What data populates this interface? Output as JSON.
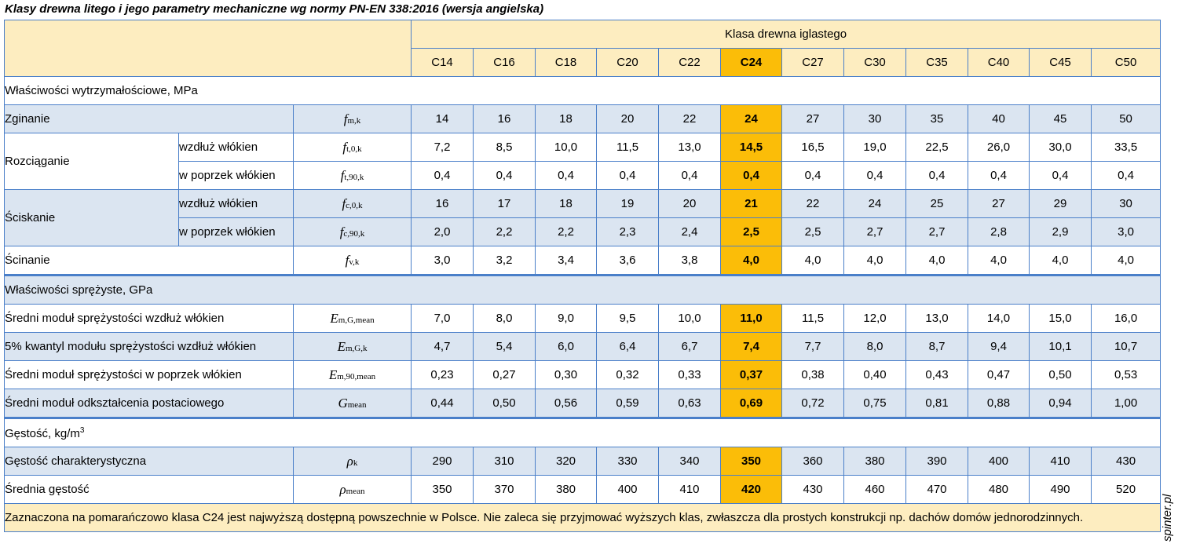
{
  "title": "Klasy drewna litego i jego parametry mechaniczne wg normy PN-EN 338:2016 (wersja angielska)",
  "group_header": "Klasa drewna iglastego",
  "classes": [
    "C14",
    "C16",
    "C18",
    "C20",
    "C22",
    "C24",
    "C27",
    "C30",
    "C35",
    "C40",
    "C45",
    "C50"
  ],
  "highlight_class": "C24",
  "sections": {
    "strength": "Właściwości wytrzymałościowe, MPa",
    "elastic": "Właściwości sprężyste, GPa",
    "density_prefix": "Gęstość, kg/m",
    "density_sup": "3"
  },
  "rows": {
    "zginanie": {
      "label": "Zginanie",
      "sym": "f",
      "sub": "m,k",
      "values": [
        "14",
        "16",
        "18",
        "20",
        "22",
        "24",
        "27",
        "30",
        "35",
        "40",
        "45",
        "50"
      ]
    },
    "rozciaganie": {
      "label": "Rozciąganie",
      "along": {
        "label": "wzdłuż włókien",
        "sym": "f",
        "sub": "t,0,k",
        "values": [
          "7,2",
          "8,5",
          "10,0",
          "11,5",
          "13,0",
          "14,5",
          "16,5",
          "19,0",
          "22,5",
          "26,0",
          "30,0",
          "33,5"
        ]
      },
      "across": {
        "label": "w poprzek włókien",
        "sym": "f",
        "sub": "t,90,k",
        "values": [
          "0,4",
          "0,4",
          "0,4",
          "0,4",
          "0,4",
          "0,4",
          "0,4",
          "0,4",
          "0,4",
          "0,4",
          "0,4",
          "0,4"
        ]
      }
    },
    "sciskanie": {
      "label": "Ściskanie",
      "along": {
        "label": "wzdłuż włókien",
        "sym": "f",
        "sub": "c,0,k",
        "values": [
          "16",
          "17",
          "18",
          "19",
          "20",
          "21",
          "22",
          "24",
          "25",
          "27",
          "29",
          "30"
        ]
      },
      "across": {
        "label": "w poprzek włókien",
        "sym": "f",
        "sub": "c,90,k",
        "values": [
          "2,0",
          "2,2",
          "2,2",
          "2,3",
          "2,4",
          "2,5",
          "2,5",
          "2,7",
          "2,7",
          "2,8",
          "2,9",
          "3,0"
        ]
      }
    },
    "scinanie": {
      "label": "Ścinanie",
      "sym": "f",
      "sub": "v,k",
      "values": [
        "3,0",
        "3,2",
        "3,4",
        "3,6",
        "3,8",
        "4,0",
        "4,0",
        "4,0",
        "4,0",
        "4,0",
        "4,0",
        "4,0"
      ]
    },
    "e_mean": {
      "label": "Średni moduł sprężystości wzdłuż włókien",
      "sym": "E",
      "sub": "m,G,mean",
      "values": [
        "7,0",
        "8,0",
        "9,0",
        "9,5",
        "10,0",
        "11,0",
        "11,5",
        "12,0",
        "13,0",
        "14,0",
        "15,0",
        "16,0"
      ]
    },
    "e_k": {
      "label": "5% kwantyl modułu sprężystości wzdłuż włókien",
      "sym": "E",
      "sub": "m,G,k",
      "values": [
        "4,7",
        "5,4",
        "6,0",
        "6,4",
        "6,7",
        "7,4",
        "7,7",
        "8,0",
        "8,7",
        "9,4",
        "10,1",
        "10,7"
      ]
    },
    "e_90": {
      "label": "Średni moduł sprężystości w poprzek włókien",
      "sym": "E",
      "sub": "m,90,mean",
      "values": [
        "0,23",
        "0,27",
        "0,30",
        "0,32",
        "0,33",
        "0,37",
        "0,38",
        "0,40",
        "0,43",
        "0,47",
        "0,50",
        "0,53"
      ]
    },
    "g_mean": {
      "label": "Średni moduł odkształcenia postaciowego",
      "sym": "G",
      "sub": "mean",
      "values": [
        "0,44",
        "0,50",
        "0,56",
        "0,59",
        "0,63",
        "0,69",
        "0,72",
        "0,75",
        "0,81",
        "0,88",
        "0,94",
        "1,00"
      ]
    },
    "rho_k": {
      "label": "Gęstość charakterystyczna",
      "sym": "ρ",
      "sub": "k",
      "values": [
        "290",
        "310",
        "320",
        "330",
        "340",
        "350",
        "360",
        "380",
        "390",
        "400",
        "410",
        "430"
      ]
    },
    "rho_mean": {
      "label": "Średnia gęstość",
      "sym": "ρ",
      "sub": "mean",
      "values": [
        "350",
        "370",
        "380",
        "400",
        "410",
        "420",
        "430",
        "460",
        "470",
        "480",
        "490",
        "520"
      ]
    }
  },
  "note": "Zaznaczona na pomarańczowo klasa C24 jest najwyższą dostępną powszechnie w Polsce. Nie zaleca się przyjmować wyższych klas, zwłaszcza dla prostych konstrukcji np. dachów domów jednorodzinnych.",
  "watermark": "spinter.pl",
  "colors": {
    "header_bg": "#fdedc0",
    "highlight": "#fbbd08",
    "row_blue": "#dbe5f1",
    "border": "#4a7fc9"
  }
}
